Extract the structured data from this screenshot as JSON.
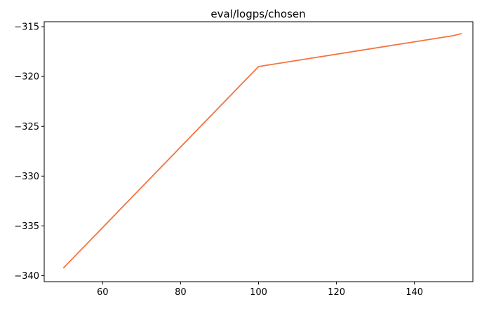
{
  "chart_data": {
    "type": "line",
    "title": "eval/logps/chosen",
    "xlabel": "",
    "ylabel": "",
    "xlim": [
      45,
      155
    ],
    "ylim": [
      -340.6,
      -314.5
    ],
    "x_ticks": [
      60,
      80,
      100,
      120,
      140
    ],
    "y_ticks": [
      -315,
      -320,
      -325,
      -330,
      -335,
      -340
    ],
    "x_tick_labels": [
      "60",
      "80",
      "100",
      "120",
      "140"
    ],
    "y_tick_labels": [
      "−315",
      "−320",
      "−325",
      "−330",
      "−335",
      "−340"
    ],
    "grid": false,
    "series": [
      {
        "name": "eval/logps/chosen",
        "color": "#f4733f",
        "x": [
          50,
          100,
          150,
          152
        ],
        "y": [
          -339.2,
          -319.0,
          -315.9,
          -315.7
        ]
      }
    ]
  }
}
